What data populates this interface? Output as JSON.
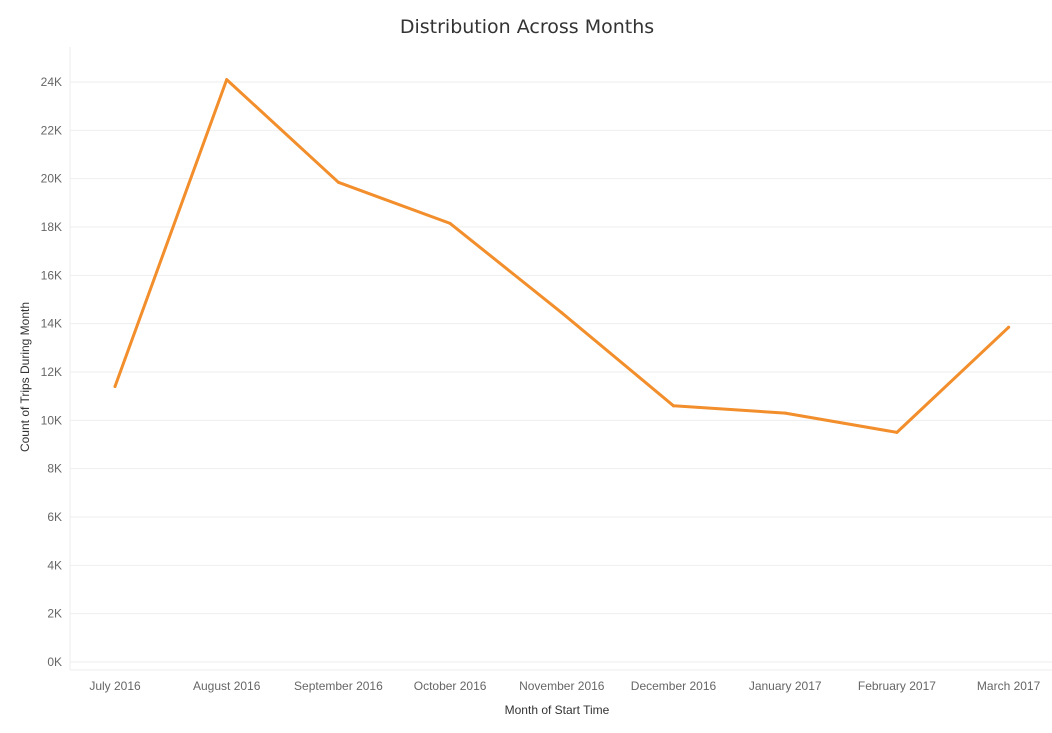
{
  "chart_data": {
    "type": "line",
    "title": "Distribution Across Months",
    "xlabel": "Month of Start Time",
    "ylabel": "Count of Trips During Month",
    "categories": [
      "July 2016",
      "August 2016",
      "September 2016",
      "October 2016",
      "November 2016",
      "December 2016",
      "January 2017",
      "February 2017",
      "March 2017"
    ],
    "series": [
      {
        "values": [
          11400,
          24100,
          19850,
          18150,
          14450,
          10600,
          10300,
          9500,
          13850
        ]
      }
    ],
    "ylim": [
      0,
      24000
    ],
    "yticks": [
      0,
      2000,
      4000,
      6000,
      8000,
      10000,
      12000,
      14000,
      16000,
      18000,
      20000,
      22000,
      24000
    ],
    "ytick_labels": [
      "0K",
      "2K",
      "4K",
      "6K",
      "8K",
      "10K",
      "12K",
      "14K",
      "16K",
      "18K",
      "20K",
      "22K",
      "24K"
    ],
    "grid": true,
    "line_color": "#f28e2b"
  }
}
